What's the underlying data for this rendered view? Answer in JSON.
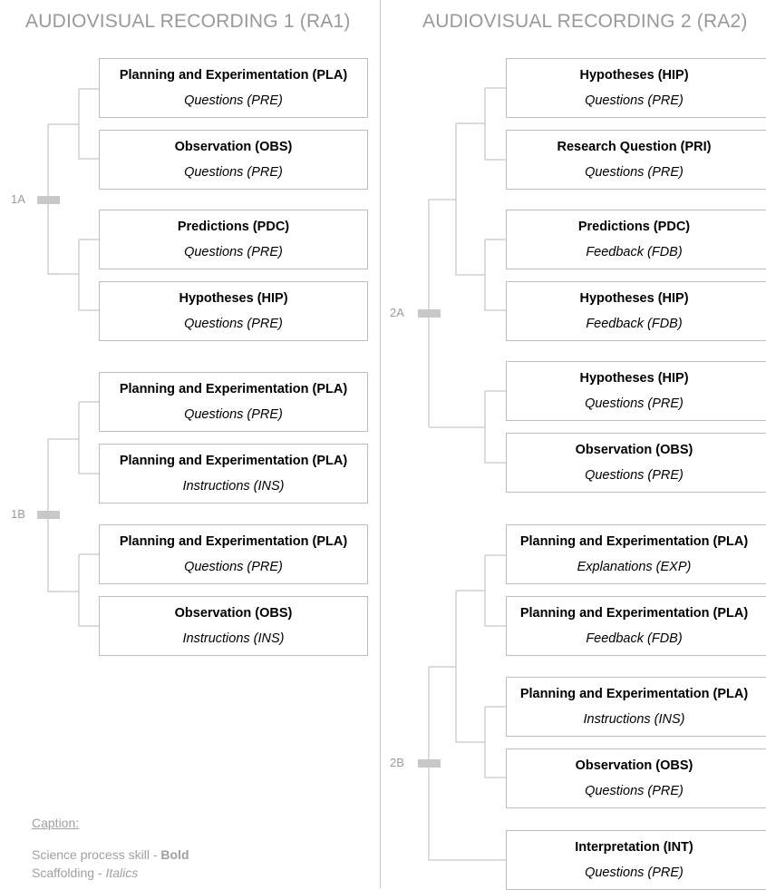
{
  "recordings": [
    {
      "title": "AUDIOVISUAL RECORDING 1 (RA1)",
      "groups": [
        {
          "label": "1A",
          "boxes": [
            {
              "skill": "Planning and Experimentation (PLA)",
              "scaffolding": "Questions (PRE)"
            },
            {
              "skill": "Observation (OBS)",
              "scaffolding": "Questions (PRE)"
            },
            {
              "skill": "Predictions (PDC)",
              "scaffolding": "Questions (PRE)"
            },
            {
              "skill": "Hypotheses (HIP)",
              "scaffolding": "Questions (PRE)"
            }
          ]
        },
        {
          "label": "1B",
          "boxes": [
            {
              "skill": "Planning and Experimentation (PLA)",
              "scaffolding": "Questions (PRE)"
            },
            {
              "skill": "Planning and Experimentation (PLA)",
              "scaffolding": "Instructions (INS)"
            },
            {
              "skill": "Planning and Experimentation (PLA)",
              "scaffolding": "Questions (PRE)"
            },
            {
              "skill": "Observation (OBS)",
              "scaffolding": "Instructions (INS)"
            }
          ]
        }
      ]
    },
    {
      "title": "AUDIOVISUAL RECORDING 2 (RA2)",
      "groups": [
        {
          "label": "2A",
          "boxes": [
            {
              "skill": "Hypotheses (HIP)",
              "scaffolding": "Questions (PRE)"
            },
            {
              "skill": "Research Question (PRI)",
              "scaffolding": "Questions (PRE)"
            },
            {
              "skill": "Predictions (PDC)",
              "scaffolding": "Feedback (FDB)"
            },
            {
              "skill": "Hypotheses (HIP)",
              "scaffolding": "Feedback (FDB)"
            },
            {
              "skill": "Hypotheses (HIP)",
              "scaffolding": "Questions (PRE)"
            },
            {
              "skill": "Observation (OBS)",
              "scaffolding": "Questions (PRE)"
            }
          ]
        },
        {
          "label": "2B",
          "boxes": [
            {
              "skill": "Planning and Experimentation (PLA)",
              "scaffolding": "Explanations (EXP)"
            },
            {
              "skill": "Planning and Experimentation (PLA)",
              "scaffolding": "Feedback (FDB)"
            },
            {
              "skill": "Planning and Experimentation (PLA)",
              "scaffolding": "Instructions (INS)"
            },
            {
              "skill": "Observation (OBS)",
              "scaffolding": "Questions (PRE)"
            },
            {
              "skill": "Interpretation (INT)",
              "scaffolding": "Questions (PRE)"
            }
          ]
        }
      ]
    }
  ],
  "caption": {
    "heading": "Caption:",
    "skill_prefix": "Science process skill - ",
    "skill_style": "Bold",
    "scaffolding_prefix": "Scaffolding - ",
    "scaffolding_style": "Italics"
  },
  "colors": {
    "connector": "#c8c8c8",
    "box_border": "#bdbdbd",
    "muted_text": "#999999"
  }
}
